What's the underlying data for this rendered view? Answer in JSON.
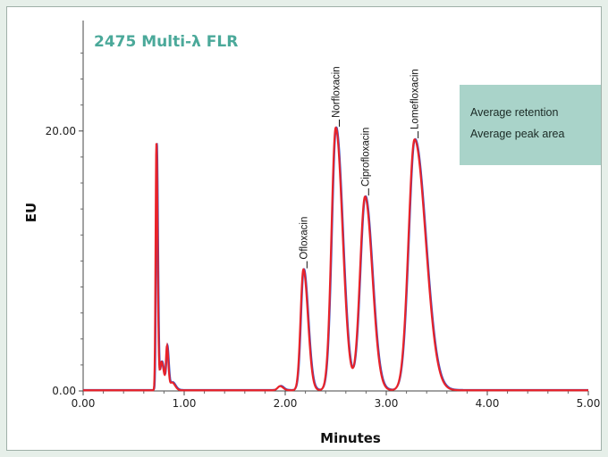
{
  "chart_data": {
    "type": "line",
    "title": "2475 Multi-λ FLR",
    "xlabel": "Minutes",
    "ylabel": "EU",
    "xlim": [
      0,
      5
    ],
    "ylim": [
      0,
      28.5
    ],
    "x_ticks": [
      "0.00",
      "1.00",
      "2.00",
      "3.00",
      "4.00",
      "5.00"
    ],
    "y_ticks": [
      {
        "value": 0,
        "label": "0.00"
      },
      {
        "value": 20,
        "label": "20.00"
      }
    ],
    "peaks": [
      {
        "name": "Ofloxacin",
        "rt": 2.18,
        "height": 9.3
      },
      {
        "name": "Norfloxacin",
        "rt": 2.5,
        "height": 20.2
      },
      {
        "name": "Ciprofloxacin",
        "rt": 2.79,
        "height": 14.9
      },
      {
        "name": "Lomefloxacin",
        "rt": 3.28,
        "height": 19.3
      }
    ],
    "other_features": [
      {
        "rt": 0.73,
        "height": 19.0
      },
      {
        "rt": 0.83,
        "height": 3.2
      }
    ],
    "baseline": 0.05,
    "grid": false,
    "legend": "none",
    "series_colors": [
      "#e8232a",
      "#3b4fc4"
    ]
  },
  "callout": {
    "lines": [
      "Average retention",
      "Average peak area"
    ]
  },
  "colors": {
    "title": "#4ba99a",
    "callout_bg": "#a9d3c9",
    "trace_front": "#e8232a",
    "trace_back": "#3b4fc4"
  }
}
